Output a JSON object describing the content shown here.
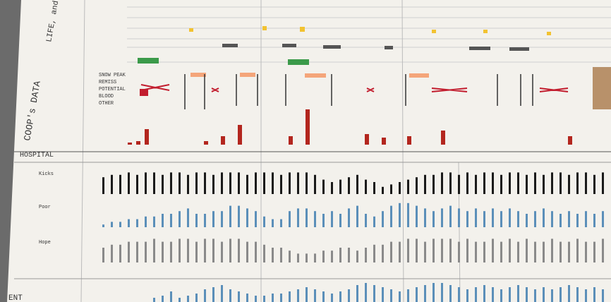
{
  "sections": {
    "life": "LIFE, and ENV",
    "coop": "COOP's DATA",
    "hospital": "HOSPITAL",
    "bottom": "ENT"
  },
  "coop_labels": [
    "SNOW PEAK",
    "REMISS",
    "POTENTIAL",
    "BLOOD",
    "OTHER"
  ],
  "row_labels": [
    "Kicks",
    "Poor",
    "Hope"
  ],
  "red_bars": {
    "color": "#b3261e",
    "values": [
      0,
      0,
      0,
      3,
      5,
      22,
      0,
      0,
      0,
      0,
      0,
      0,
      5,
      0,
      12,
      0,
      28,
      0,
      0,
      0,
      0,
      0,
      12,
      0,
      50,
      0,
      0,
      0,
      0,
      0,
      0,
      15,
      0,
      10,
      0,
      0,
      12,
      0,
      0,
      0,
      20,
      0,
      0,
      0,
      0,
      0,
      0,
      0,
      0,
      0,
      0,
      0,
      0,
      0,
      0,
      12,
      0,
      0,
      0,
      0
    ]
  },
  "rows": [
    {
      "color": "#1a1a1a",
      "values": [
        7,
        8,
        8,
        9,
        8,
        9,
        9,
        8,
        9,
        9,
        8,
        9,
        9,
        8,
        9,
        9,
        9,
        8,
        9,
        9,
        9,
        8,
        9,
        9,
        9,
        8,
        6,
        5,
        6,
        7,
        8,
        6,
        5,
        3,
        4,
        5,
        6,
        7,
        8,
        8,
        9,
        9,
        8,
        9,
        8,
        9,
        9,
        8,
        9,
        9,
        8,
        9,
        8,
        9,
        9,
        8,
        9,
        9,
        8,
        9
      ]
    },
    {
      "color": "#5b8fb9",
      "values": [
        1,
        2,
        2,
        3,
        3,
        4,
        4,
        5,
        5,
        6,
        7,
        5,
        5,
        6,
        6,
        8,
        8,
        7,
        6,
        4,
        3,
        3,
        6,
        7,
        7,
        6,
        5,
        6,
        5,
        7,
        8,
        5,
        4,
        6,
        8,
        9,
        9,
        8,
        7,
        6,
        7,
        8,
        7,
        6,
        7,
        6,
        7,
        6,
        7,
        6,
        5,
        6,
        7,
        6,
        5,
        6,
        5,
        6,
        5,
        6
      ]
    },
    {
      "color": "#8a8a8a",
      "values": [
        5,
        6,
        6,
        7,
        7,
        7,
        8,
        7,
        7,
        8,
        8,
        7,
        8,
        8,
        7,
        8,
        8,
        7,
        7,
        6,
        5,
        5,
        4,
        3,
        3,
        3,
        4,
        4,
        5,
        5,
        4,
        5,
        6,
        6,
        7,
        7,
        8,
        8,
        7,
        8,
        8,
        8,
        7,
        8,
        7,
        7,
        8,
        7,
        8,
        7,
        8,
        7,
        7,
        8,
        7,
        7,
        8,
        7,
        7,
        8
      ]
    },
    {
      "color": "#5b8fb9",
      "values": [
        0,
        0,
        0,
        0,
        0,
        0,
        2,
        3,
        5,
        2,
        3,
        4,
        6,
        7,
        8,
        6,
        5,
        4,
        3,
        3,
        4,
        4,
        5,
        6,
        7,
        6,
        5,
        4,
        5,
        6,
        8,
        9,
        8,
        7,
        6,
        5,
        6,
        7,
        8,
        9,
        9,
        8,
        7,
        6,
        7,
        8,
        7,
        6,
        7,
        8,
        7,
        6,
        7,
        6,
        7,
        8,
        7,
        6,
        7,
        6
      ]
    }
  ]
}
